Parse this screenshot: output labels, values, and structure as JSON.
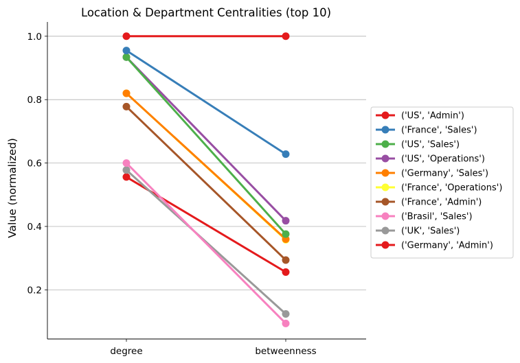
{
  "chart_data": {
    "type": "line",
    "title": "Location & Department Centralities (top 10)",
    "xlabel": "",
    "ylabel": "Value (normalized)",
    "categories": [
      "degree",
      "betweenness"
    ],
    "ylim": [
      0.045,
      1.045
    ],
    "yticks": [
      "0.2",
      "0.4",
      "0.6",
      "0.8",
      "1.0"
    ],
    "grid": "horizontal",
    "legend_placement": "center-right, outside",
    "series": [
      {
        "name": "('US', 'Admin')",
        "color": "#e41a1c",
        "values": [
          1.0,
          1.0
        ]
      },
      {
        "name": "('France', 'Sales')",
        "color": "#377eb8",
        "values": [
          0.955,
          0.628
        ]
      },
      {
        "name": "('US', 'Sales')",
        "color": "#4daf4a",
        "values": [
          0.934,
          0.376
        ]
      },
      {
        "name": "('US', 'Operations')",
        "color": "#984ea3",
        "values": [
          0.934,
          0.418
        ]
      },
      {
        "name": "('Germany', 'Sales')",
        "color": "#ff7f00",
        "values": [
          0.82,
          0.36
        ]
      },
      {
        "name": "('France', 'Operations')",
        "color": "#ffff33",
        "values": [
          0.82,
          0.358
        ]
      },
      {
        "name": "('France', 'Admin')",
        "color": "#a65628",
        "values": [
          0.778,
          0.294
        ]
      },
      {
        "name": "('Brasil', 'Sales')",
        "color": "#f781bf",
        "values": [
          0.6,
          0.094
        ]
      },
      {
        "name": "('UK', 'Sales')",
        "color": "#999999",
        "values": [
          0.578,
          0.124
        ]
      },
      {
        "name": "('Germany', 'Admin')",
        "color": "#e41a1c",
        "values": [
          0.556,
          0.256
        ]
      }
    ]
  }
}
